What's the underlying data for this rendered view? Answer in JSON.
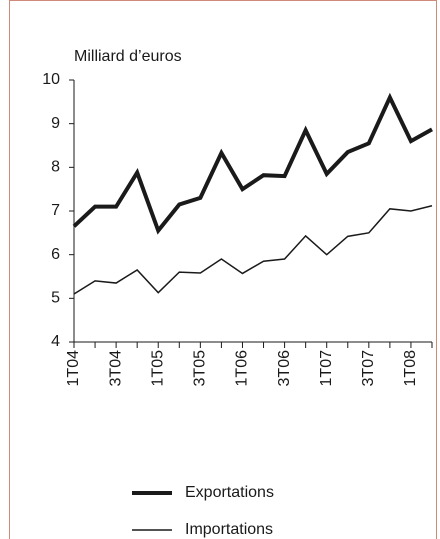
{
  "chart_data": {
    "type": "line",
    "y_label": "Milliard d’euros",
    "categories": [
      "1T04",
      null,
      "3T04",
      null,
      "1T05",
      null,
      "3T05",
      null,
      "1T06",
      null,
      "3T06",
      null,
      "1T07",
      null,
      "3T07",
      null,
      "1T08",
      null
    ],
    "series": [
      {
        "name": "Exportations",
        "color": "#1a1a1a",
        "values": [
          6.65,
          7.1,
          7.1,
          7.88,
          6.55,
          7.15,
          7.3,
          8.33,
          7.5,
          7.82,
          7.8,
          8.85,
          7.85,
          8.35,
          8.55,
          9.6,
          8.6,
          8.87
        ]
      },
      {
        "name": "Importations",
        "color": "#1a1a1a",
        "values": [
          5.1,
          5.4,
          5.35,
          5.65,
          5.13,
          5.6,
          5.58,
          5.9,
          5.57,
          5.85,
          5.9,
          6.43,
          6.0,
          6.42,
          6.5,
          7.05,
          7.0,
          7.12
        ]
      }
    ],
    "ylim": [
      4,
      10
    ],
    "yticks": [
      4,
      5,
      6,
      7,
      8,
      9,
      10
    ],
    "grid": false
  }
}
